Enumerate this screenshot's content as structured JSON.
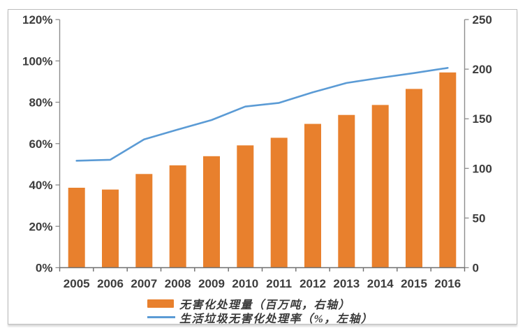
{
  "chart_data": {
    "type": "combo",
    "categories": [
      "2005",
      "2006",
      "2007",
      "2008",
      "2009",
      "2010",
      "2011",
      "2012",
      "2013",
      "2014",
      "2015",
      "2016"
    ],
    "series": [
      {
        "name": "无害化处理量（百万吨，右轴）",
        "type": "bar",
        "axis": "right",
        "color": "#E8802D",
        "values": [
          80.5,
          78.7,
          94.4,
          103.1,
          112.3,
          123.2,
          130.9,
          144.9,
          153.9,
          163.9,
          180.1,
          196.7
        ]
      },
      {
        "name": "生活垃圾无害化处理率（%，左轴）",
        "type": "line",
        "axis": "left",
        "color": "#5B9BD5",
        "values": [
          51.7,
          52.2,
          62.0,
          66.8,
          71.4,
          77.9,
          79.7,
          84.8,
          89.3,
          91.8,
          94.1,
          96.6
        ]
      }
    ],
    "left_axis": {
      "min": 0,
      "max": 120,
      "step": 20,
      "unit": "%",
      "tick_labels": [
        "0%",
        "20%",
        "40%",
        "60%",
        "80%",
        "100%",
        "120%"
      ]
    },
    "right_axis": {
      "min": 0,
      "max": 250,
      "step": 50,
      "unit": "",
      "tick_labels": [
        "0",
        "50",
        "100",
        "150",
        "200",
        "250"
      ]
    },
    "grid": false,
    "legend_position": "bottom",
    "title": ""
  },
  "legend": {
    "items": [
      {
        "label": "无害化处理量（百万吨，右轴）",
        "swatch": "bar",
        "color": "#E8802D"
      },
      {
        "label": "生活垃圾无害化处理率（%，左轴）",
        "swatch": "line",
        "color": "#5B9BD5"
      }
    ]
  },
  "colors": {
    "bar": "#E8802D",
    "line": "#5B9BD5",
    "axis": "#8c8c8c",
    "x_axis": "#6e6e6e",
    "tick_label": "#3d3d3d",
    "frame_border": "#bcbcbc"
  }
}
